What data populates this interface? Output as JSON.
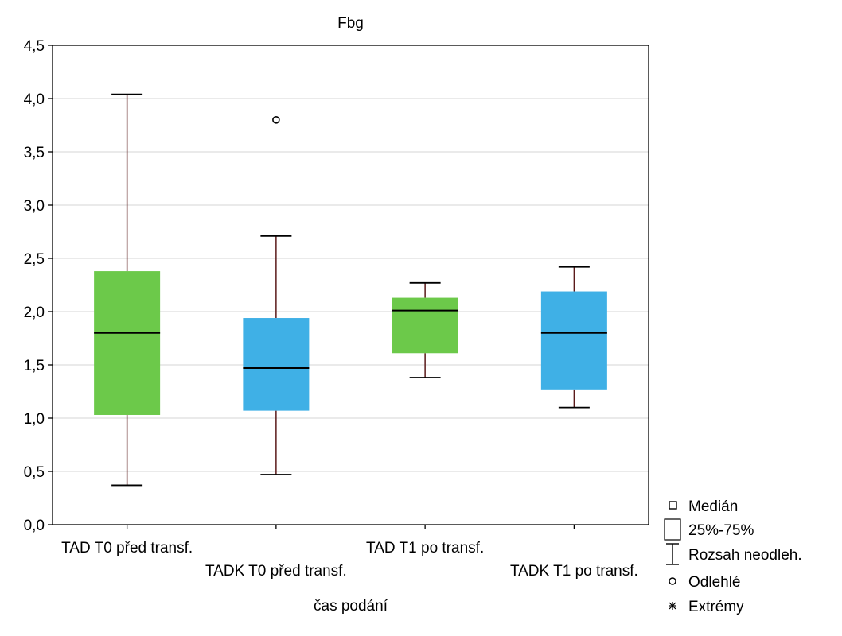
{
  "chart_data": {
    "type": "boxplot",
    "title": "Fbg",
    "xlabel": "čas podání",
    "ylabel": "",
    "ylim": [
      0,
      4.5
    ],
    "yticks": [
      0,
      0.5,
      1,
      1.5,
      2,
      2.5,
      3,
      3.5,
      4,
      4.5
    ],
    "ytick_labels": [
      "0,0",
      "0,5",
      "1,0",
      "1,5",
      "2,0",
      "2,5",
      "3,0",
      "3,5",
      "4,0",
      "4,5"
    ],
    "grid": true,
    "categories": [
      "TAD T0 před transf.",
      "TADK T0 před transf.",
      "TAD T1 po transf.",
      "TADK T1 po transf."
    ],
    "boxes": [
      {
        "category": "TAD T0 před transf.",
        "min": 0.37,
        "q1": 1.03,
        "median": 1.8,
        "q3": 2.38,
        "max": 4.04,
        "outliers": [],
        "color": "#6cc94a"
      },
      {
        "category": "TADK T0 před transf.",
        "min": 0.47,
        "q1": 1.07,
        "median": 1.47,
        "q3": 1.94,
        "max": 2.71,
        "outliers": [
          3.8
        ],
        "color": "#3fb0e6"
      },
      {
        "category": "TAD T1 po transf.",
        "min": 1.38,
        "q1": 1.61,
        "median": 2.01,
        "q3": 2.13,
        "max": 2.27,
        "outliers": [],
        "color": "#6cc94a"
      },
      {
        "category": "TADK T1 po transf.",
        "min": 1.1,
        "q1": 1.27,
        "median": 1.8,
        "q3": 2.19,
        "max": 2.42,
        "outliers": [],
        "color": "#3fb0e6"
      }
    ],
    "legend": {
      "placement": "bottom-right",
      "items": [
        {
          "symbol": "median-square",
          "label": "Medián"
        },
        {
          "symbol": "box",
          "label": "25%-75%"
        },
        {
          "symbol": "whisker",
          "label": "Rozsah neodleh."
        },
        {
          "symbol": "outlier-circle",
          "label": "Odlehlé"
        },
        {
          "symbol": "extreme-star",
          "label": "Extrémy"
        }
      ]
    }
  }
}
